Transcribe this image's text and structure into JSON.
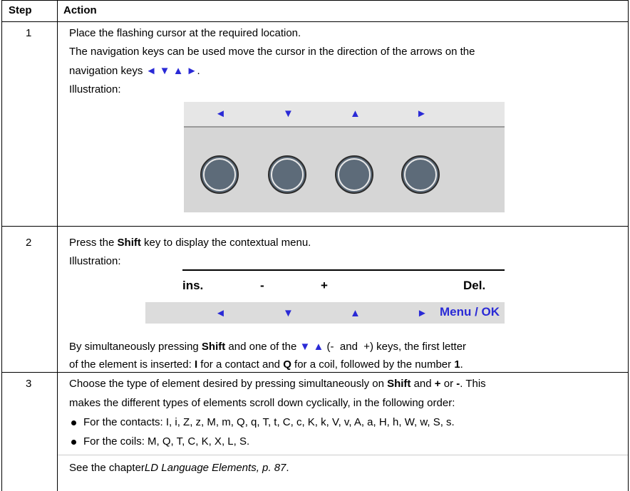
{
  "table": {
    "header": [
      "Step",
      "Action"
    ],
    "rows": [
      {
        "step": "1",
        "text": [
          "Place the flashing cursor at the required location.",
          "The navigation keys can be used move the cursor in the direction of the arrows on the",
          "navigation keys ",
          "◄ ▼ ▲ ►",
          "."
        ],
        "illustration_label": "Illustration:",
        "illustration": {
          "arrows": [
            "◄",
            "▼",
            "▲",
            "►"
          ]
        }
      },
      {
        "step": "2",
        "text": [
          "Press the ",
          "Shift",
          " key to display the contextual menu."
        ],
        "illustration_label": "Illustration:",
        "illustration": {
          "labels": [
            "ins.",
            "-",
            "+",
            "Del."
          ],
          "arrows": [
            "◄",
            "▼",
            "▲",
            "►"
          ],
          "menu": "Menu / OK"
        },
        "note": [
          "By simultaneously pressing ",
          "Shift",
          " and one of the ",
          "▼ ▲",
          " (-  and  +) keys, the first letter",
          "of the element is inserted: ",
          "I",
          " for a contact and ",
          "Q",
          " for a coil, followed by the number ",
          "1",
          "."
        ]
      },
      {
        "step": "3",
        "text": [
          "Choose the type of element desired by pressing simultaneously on ",
          "Shift",
          " and ",
          "+",
          " or ",
          "-",
          ". This",
          "makes the different types of elements scroll down cyclically, in the following order:"
        ],
        "bullets": [
          "For the contacts: I, i, Z, z, M, m, Q, q, T, t, C, c, K, k, V, v, A, a, H, h, W, w, S, s.",
          "For the coils: M, Q, T, C, K, X, L, S."
        ],
        "see": [
          "See the chapter",
          "LD Language Elements, p. 87",
          "."
        ]
      }
    ]
  }
}
